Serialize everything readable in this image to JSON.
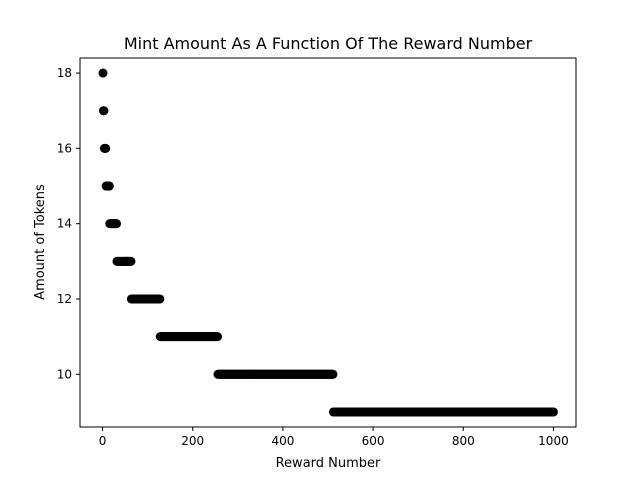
{
  "chart_data": {
    "type": "scatter",
    "title": "Mint Amount As A Function Of The Reward Number",
    "xlabel": "Reward Number",
    "ylabel": "Amount of Tokens",
    "xlim": [
      -50,
      1050
    ],
    "ylim": [
      8.6,
      18.4
    ],
    "xticks": [
      0,
      200,
      400,
      600,
      800,
      1000
    ],
    "yticks": [
      10,
      12,
      14,
      16,
      18
    ],
    "grid": false,
    "marker_color": "#000000",
    "series": [
      {
        "points": [
          [
            1,
            18
          ]
        ],
        "ranges": [
          {
            "y": 18,
            "x_start": 1,
            "x_end": 1
          },
          {
            "y": 17,
            "x_start": 2,
            "x_end": 3
          },
          {
            "y": 16,
            "x_start": 4,
            "x_end": 7
          },
          {
            "y": 15,
            "x_start": 8,
            "x_end": 15
          },
          {
            "y": 14,
            "x_start": 16,
            "x_end": 31
          },
          {
            "y": 13,
            "x_start": 32,
            "x_end": 63
          },
          {
            "y": 12,
            "x_start": 64,
            "x_end": 127
          },
          {
            "y": 11,
            "x_start": 128,
            "x_end": 255
          },
          {
            "y": 10,
            "x_start": 256,
            "x_end": 511
          },
          {
            "y": 9,
            "x_start": 512,
            "x_end": 1000
          }
        ]
      }
    ]
  }
}
